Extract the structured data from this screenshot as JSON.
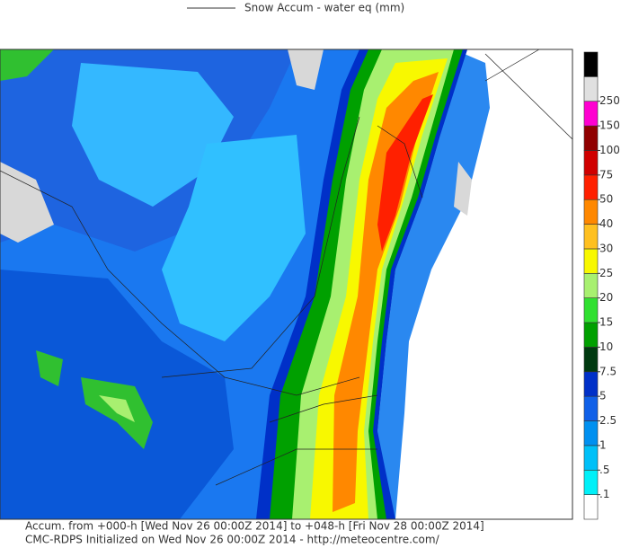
{
  "header": {
    "title": "Snow Accum - water eq (mm)"
  },
  "colorbar": {
    "ticks": [
      {
        "value": 0.1,
        "label": ".1"
      },
      {
        "value": 0.5,
        "label": ".5"
      },
      1,
      2.5,
      5,
      7.5,
      10,
      15,
      20,
      25,
      30,
      40,
      50,
      75,
      100,
      150,
      250
    ],
    "colors": [
      "#ffffff",
      "#00f0f8",
      "#00c0f8",
      "#0090f0",
      "#1060e8",
      "#0030c8",
      "#003a10",
      "#00a000",
      "#30e030",
      "#a8f070",
      "#f8f800",
      "#ffc020",
      "#ff8800",
      "#ff2000",
      "#d00000",
      "#900000",
      "#ff00d0",
      "#e0e0e0",
      "#000000"
    ]
  },
  "footer": {
    "line1": "Accum. from +000-h [Wed Nov 26 00:00Z 2014] to +048-h [Fri Nov 28 00:00Z 2014]",
    "line2": "CMC-RDPS Initialized on Wed Nov 26 00:00Z 2014 - http://meteocentre.com/"
  }
}
